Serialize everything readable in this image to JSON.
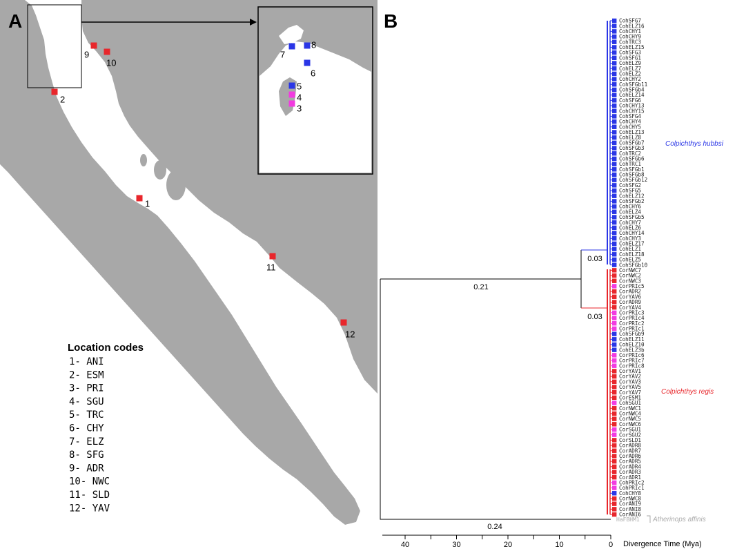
{
  "panel_a": {
    "label": "A",
    "sites": [
      {
        "num": "1",
        "color": "#e8262b"
      },
      {
        "num": "2",
        "color": "#e8262b"
      },
      {
        "num": "3",
        "color": "#f23be0"
      },
      {
        "num": "4",
        "color": "#f23be0"
      },
      {
        "num": "5",
        "color": "#2a36e6"
      },
      {
        "num": "6",
        "color": "#2a36e6"
      },
      {
        "num": "7",
        "color": "#2a36e6"
      },
      {
        "num": "8",
        "color": "#2a36e6"
      },
      {
        "num": "9",
        "color": "#e8262b"
      },
      {
        "num": "10",
        "color": "#e8262b"
      },
      {
        "num": "11",
        "color": "#e8262b"
      },
      {
        "num": "12",
        "color": "#e8262b"
      }
    ],
    "legend": {
      "title": "Location codes",
      "items": [
        "1- ANI",
        "2- ESM",
        "3- PRI",
        "4- SGU",
        "5- TRC",
        "6- CHY",
        "7- ELZ",
        "8- SFG",
        "9- ADR",
        "10- NWC",
        "11- SLD",
        "12- YAV"
      ]
    }
  },
  "panel_b": {
    "label": "B",
    "colors": {
      "blue": "#2a36e6",
      "red": "#e8262b",
      "magenta": "#f23be0",
      "outgroup": "#aaaaaa"
    },
    "taxa": [
      {
        "name": "CohSFG7",
        "c": "b"
      },
      {
        "name": "CohELZ16",
        "c": "b"
      },
      {
        "name": "CohCHY1",
        "c": "b"
      },
      {
        "name": "CohCHY9",
        "c": "b"
      },
      {
        "name": "CohTRC3",
        "c": "b"
      },
      {
        "name": "CohELZ15",
        "c": "b"
      },
      {
        "name": "CohSFG3",
        "c": "b"
      },
      {
        "name": "CohSFG1",
        "c": "b"
      },
      {
        "name": "CohELZ9",
        "c": "b"
      },
      {
        "name": "CohELZ7",
        "c": "b"
      },
      {
        "name": "CohELZ2",
        "c": "b"
      },
      {
        "name": "CohCHY2",
        "c": "b"
      },
      {
        "name": "CohSFGb11",
        "c": "b"
      },
      {
        "name": "CohSFGb4",
        "c": "b"
      },
      {
        "name": "CohELZ14",
        "c": "b"
      },
      {
        "name": "CohSFG6",
        "c": "b"
      },
      {
        "name": "CohCHY13",
        "c": "b"
      },
      {
        "name": "CohCHY15",
        "c": "b"
      },
      {
        "name": "CohSFG4",
        "c": "b"
      },
      {
        "name": "CohCHY4",
        "c": "b"
      },
      {
        "name": "CohCHY5",
        "c": "b"
      },
      {
        "name": "CohELZ13",
        "c": "b"
      },
      {
        "name": "CohELZ8",
        "c": "b"
      },
      {
        "name": "CohSFGb7",
        "c": "b"
      },
      {
        "name": "CohSFGb3",
        "c": "b"
      },
      {
        "name": "CohTRC2",
        "c": "b"
      },
      {
        "name": "CohSFGb6",
        "c": "b"
      },
      {
        "name": "CohTRC1",
        "c": "b"
      },
      {
        "name": "CohSFGb1",
        "c": "b"
      },
      {
        "name": "CohSFGb8",
        "c": "b"
      },
      {
        "name": "CohSFGb12",
        "c": "b"
      },
      {
        "name": "CohSFG2",
        "c": "b"
      },
      {
        "name": "CohSFG5",
        "c": "b"
      },
      {
        "name": "CohELZ12",
        "c": "b"
      },
      {
        "name": "CohSFGb2",
        "c": "b"
      },
      {
        "name": "CohCHY6",
        "c": "b"
      },
      {
        "name": "CohELZ4",
        "c": "b"
      },
      {
        "name": "CohSFGb5",
        "c": "b"
      },
      {
        "name": "CohCHY7",
        "c": "b"
      },
      {
        "name": "CohELZ6",
        "c": "b"
      },
      {
        "name": "CohCHY14",
        "c": "b"
      },
      {
        "name": "CohCHY3",
        "c": "b"
      },
      {
        "name": "CohELZ17",
        "c": "b"
      },
      {
        "name": "CohELZ1",
        "c": "b"
      },
      {
        "name": "CohELZ18",
        "c": "b"
      },
      {
        "name": "CohELZ5",
        "c": "b"
      },
      {
        "name": "CohSFGb10",
        "c": "b"
      },
      {
        "name": "CorNWC7",
        "c": "r"
      },
      {
        "name": "CorNWC2",
        "c": "r"
      },
      {
        "name": "CorNWC3",
        "c": "r"
      },
      {
        "name": "CorPRIc5",
        "c": "m"
      },
      {
        "name": "CorADR2",
        "c": "r"
      },
      {
        "name": "CorYAV6",
        "c": "r"
      },
      {
        "name": "CorADR9",
        "c": "r"
      },
      {
        "name": "CorYAV4",
        "c": "r"
      },
      {
        "name": "CorPRIc3",
        "c": "m"
      },
      {
        "name": "CorPRIc4",
        "c": "m"
      },
      {
        "name": "CorPRIc2",
        "c": "m"
      },
      {
        "name": "CorPRIc1",
        "c": "m"
      },
      {
        "name": "CohSFGb9",
        "c": "b"
      },
      {
        "name": "CohELZ11",
        "c": "b"
      },
      {
        "name": "CohELZ10",
        "c": "b"
      },
      {
        "name": "CohELZ3b",
        "c": "b"
      },
      {
        "name": "CorPRIc6",
        "c": "m"
      },
      {
        "name": "CorPRIc7",
        "c": "m"
      },
      {
        "name": "CorPRIc8",
        "c": "m"
      },
      {
        "name": "CorYAV1",
        "c": "r"
      },
      {
        "name": "CorYAV2",
        "c": "r"
      },
      {
        "name": "CorYAV3",
        "c": "r"
      },
      {
        "name": "CorYAV5",
        "c": "r"
      },
      {
        "name": "CorYAV7",
        "c": "r"
      },
      {
        "name": "CorESM1",
        "c": "r"
      },
      {
        "name": "CohSGU1",
        "c": "m"
      },
      {
        "name": "CorNWC1",
        "c": "r"
      },
      {
        "name": "CorNWC4",
        "c": "r"
      },
      {
        "name": "CorNWC5",
        "c": "r"
      },
      {
        "name": "CorNWC6",
        "c": "r"
      },
      {
        "name": "CorSGU1",
        "c": "m"
      },
      {
        "name": "CorSGU2",
        "c": "m"
      },
      {
        "name": "CorSLD1",
        "c": "r"
      },
      {
        "name": "CorADR8",
        "c": "r"
      },
      {
        "name": "CorADR7",
        "c": "r"
      },
      {
        "name": "CorADR6",
        "c": "r"
      },
      {
        "name": "CorADR5",
        "c": "r"
      },
      {
        "name": "CorADR4",
        "c": "r"
      },
      {
        "name": "CorADR3",
        "c": "r"
      },
      {
        "name": "CorADR1",
        "c": "r"
      },
      {
        "name": "CohPRIc2",
        "c": "m"
      },
      {
        "name": "CohPRIc1",
        "c": "m"
      },
      {
        "name": "CohCHY8",
        "c": "b"
      },
      {
        "name": "CorNWC8",
        "c": "r"
      },
      {
        "name": "CorANI9",
        "c": "r"
      },
      {
        "name": "CorANI8",
        "c": "r"
      },
      {
        "name": "CorANI6",
        "c": "r"
      }
    ],
    "outgroup_taxon": "HaFBHM1",
    "species_labels": {
      "hubbsi": "Colpichthys hubbsi",
      "regis": "Colpichthys regis",
      "outgroup": "Atherinops affinis"
    },
    "node_labels": {
      "root": "0.21",
      "blue_clade": "0.03",
      "red_clade": "0.03",
      "outgroup": "0.24"
    },
    "axis": {
      "ticks": [
        "40",
        "30",
        "20",
        "10",
        "0"
      ],
      "title": "Divergence Time (Mya)"
    }
  }
}
